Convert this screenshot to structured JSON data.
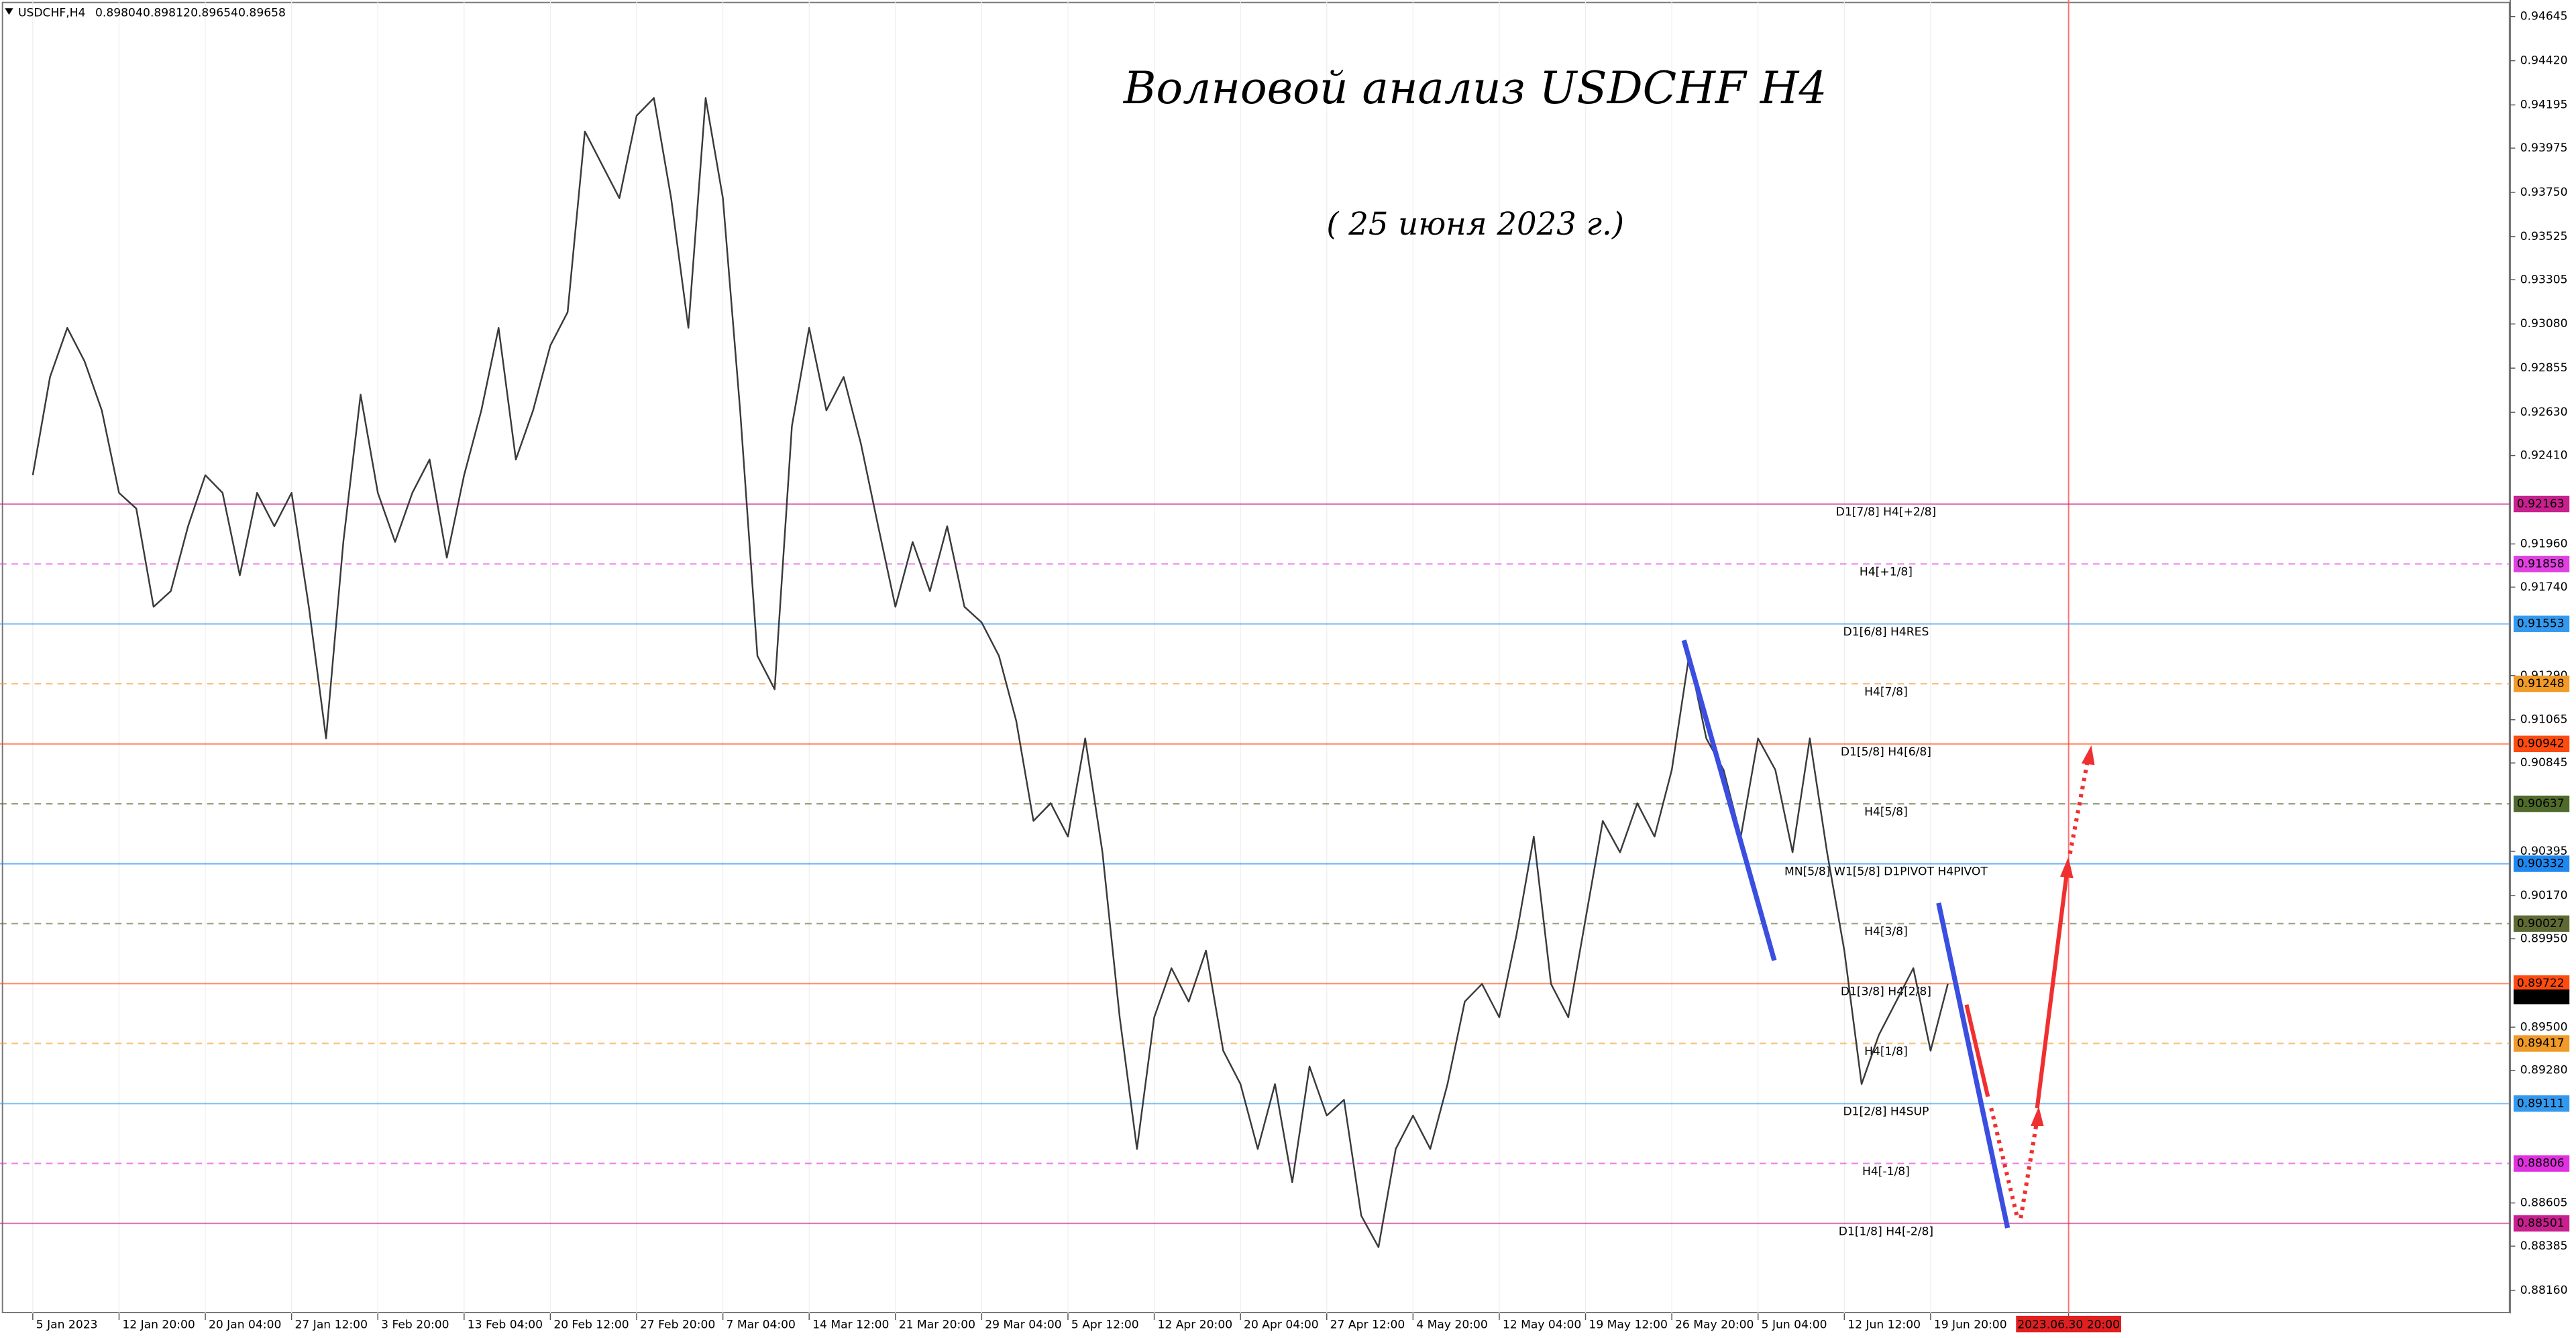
{
  "chart_data": {
    "type": "line",
    "symbol": "USDCHF,H4",
    "ohlc": [
      0.89804,
      0.89812,
      0.89654,
      0.89658
    ],
    "title": "Волновой анализ USDCHF H4",
    "subtitle": "( 25 июня 2023 г.)",
    "current_price": 0.89658,
    "color": "#3a3a3a",
    "values": [
      0.9231,
      0.9281,
      0.9306,
      0.9289,
      0.9264,
      0.9222,
      0.9214,
      0.9164,
      0.9172,
      0.9205,
      0.9231,
      0.9222,
      0.918,
      0.9222,
      0.9205,
      0.9222,
      0.9164,
      0.9097,
      0.9197,
      0.9272,
      0.9222,
      0.9197,
      0.9222,
      0.9239,
      0.9189,
      0.9231,
      0.9264,
      0.9306,
      0.9239,
      0.9264,
      0.9297,
      0.9314,
      0.9406,
      0.9389,
      0.9372,
      0.9414,
      0.9423,
      0.9372,
      0.9306,
      0.9423,
      0.9372,
      0.9264,
      0.9139,
      0.9122,
      0.9256,
      0.9306,
      0.9264,
      0.9281,
      0.9247,
      0.9205,
      0.9164,
      0.9197,
      0.9172,
      0.9205,
      0.9164,
      0.9156,
      0.9139,
      0.9106,
      0.9055,
      0.9064,
      0.9047,
      0.9097,
      0.9039,
      0.8955,
      0.8888,
      0.8955,
      0.898,
      0.8963,
      0.8989,
      0.8938,
      0.8921,
      0.8888,
      0.8921,
      0.8871,
      0.893,
      0.8905,
      0.8913,
      0.8854,
      0.8838,
      0.8888,
      0.8905,
      0.8888,
      0.8921,
      0.8963,
      0.8972,
      0.8955,
      0.8997,
      0.9047,
      0.8972,
      0.8955,
      0.9005,
      0.9055,
      0.9039,
      0.9064,
      0.9047,
      0.9081,
      0.9139,
      0.9097,
      0.9081,
      0.9047,
      0.9097,
      0.9081,
      0.9039,
      0.9097,
      0.9039,
      0.8989,
      0.8921,
      0.8946,
      0.8963,
      0.898,
      0.8938,
      0.8972
    ],
    "xlim": [
      -1.9,
      143.6
    ],
    "ylim": [
      0.88043,
      0.94729
    ],
    "xticks": [
      {
        "value": 0,
        "label": "5 Jan 2023"
      },
      {
        "value": 5,
        "label": "12 Jan 20:00"
      },
      {
        "value": 10,
        "label": "20 Jan 04:00"
      },
      {
        "value": 15,
        "label": "27 Jan 12:00"
      },
      {
        "value": 20,
        "label": "3 Feb 20:00"
      },
      {
        "value": 25,
        "label": "13 Feb 04:00"
      },
      {
        "value": 30,
        "label": "20 Feb 12:00"
      },
      {
        "value": 35,
        "label": "27 Feb 20:00"
      },
      {
        "value": 40,
        "label": "7 Mar 04:00"
      },
      {
        "value": 45,
        "label": "14 Mar 12:00"
      },
      {
        "value": 50,
        "label": "21 Mar 20:00"
      },
      {
        "value": 55,
        "label": "29 Mar 04:00"
      },
      {
        "value": 60,
        "label": "5 Apr 12:00"
      },
      {
        "value": 65,
        "label": "12 Apr 20:00"
      },
      {
        "value": 70,
        "label": "20 Apr 04:00"
      },
      {
        "value": 75,
        "label": "27 Apr 12:00"
      },
      {
        "value": 80,
        "label": "4 May 20:00"
      },
      {
        "value": 85,
        "label": "12 May 04:00"
      },
      {
        "value": 90,
        "label": "19 May 12:00"
      },
      {
        "value": 95,
        "label": "26 May 20:00"
      },
      {
        "value": 100,
        "label": "5 Jun 04:00"
      },
      {
        "value": 105,
        "label": "12 Jun 12:00"
      },
      {
        "value": 110,
        "label": "19 Jun 20:00"
      },
      {
        "value": 118,
        "label": "2023.06.30 20:00"
      }
    ],
    "highlight_xtick": 23,
    "yticks": [
      0.94645,
      {
        "value": 0.9442,
        "label": "0.94420"
      },
      0.94195,
      0.93975,
      {
        "value": 0.9375,
        "label": "0.93750"
      },
      0.93525,
      0.93305,
      {
        "value": 0.9308,
        "label": "0.93080"
      },
      0.92855,
      {
        "value": 0.9263,
        "label": "0.92630"
      },
      {
        "value": 0.9241,
        "label": "0.92410"
      },
      {
        "value": 0.9196,
        "label": "0.91960"
      },
      {
        "value": 0.9174,
        "label": "0.91740"
      },
      {
        "value": 0.9129,
        "label": "0.91290"
      },
      0.91065,
      0.90845,
      0.90395,
      {
        "value": 0.9017,
        "label": "0.90170"
      },
      {
        "value": 0.8995,
        "label": "0.89950"
      },
      {
        "value": 0.895,
        "label": "0.89500"
      },
      {
        "value": 0.8928,
        "label": "0.89280"
      },
      0.88605,
      0.88385,
      {
        "value": 0.8816,
        "label": "0.88160"
      }
    ],
    "levels": [
      {
        "value": 0.92163,
        "label": "D1[7/8] H4[+2/8]",
        "color": "#c8208e",
        "style": "solid"
      },
      {
        "value": 0.91858,
        "label": "H4[+1/8]",
        "color": "#e040e0",
        "style": "dashed"
      },
      {
        "value": 0.91553,
        "label": "D1[6/8] H4RES",
        "color": "#3399ee",
        "style": "solid"
      },
      {
        "value": 0.91248,
        "label": "H4[7/8]",
        "color": "#f09a28",
        "style": "dashed"
      },
      {
        "value": 0.90942,
        "label": "D1[5/8] H4[6/8]",
        "color": "#ff4a10",
        "style": "solid"
      },
      {
        "value": 0.90637,
        "label": "H4[5/8]",
        "color": "#4f6a2a",
        "style": "dashed"
      },
      {
        "value": 0.90332,
        "label": "MN[5/8] W1[5/8] D1PIVOT H4PIVOT",
        "color": "#1e88f0",
        "style": "solid"
      },
      {
        "value": 0.90027,
        "label": "H4[3/8]",
        "color": "#5e6a34",
        "style": "dashed"
      },
      {
        "value": 0.89722,
        "label": "D1[3/8] H4[2/8]",
        "color": "#ff4a10",
        "style": "solid"
      },
      {
        "value": 0.89417,
        "label": "H4[1/8]",
        "color": "#f09a28",
        "style": "dashed"
      },
      {
        "value": 0.89111,
        "label": "D1[2/8] H4SUP",
        "color": "#3399ee",
        "style": "solid"
      },
      {
        "value": 0.88806,
        "label": "H4[-1/8]",
        "color": "#e030e0",
        "style": "dashed"
      },
      {
        "value": 0.88501,
        "label": "D1[1/8] H4[-2/8]",
        "color": "#c8208e",
        "style": "solid"
      }
    ]
  }
}
